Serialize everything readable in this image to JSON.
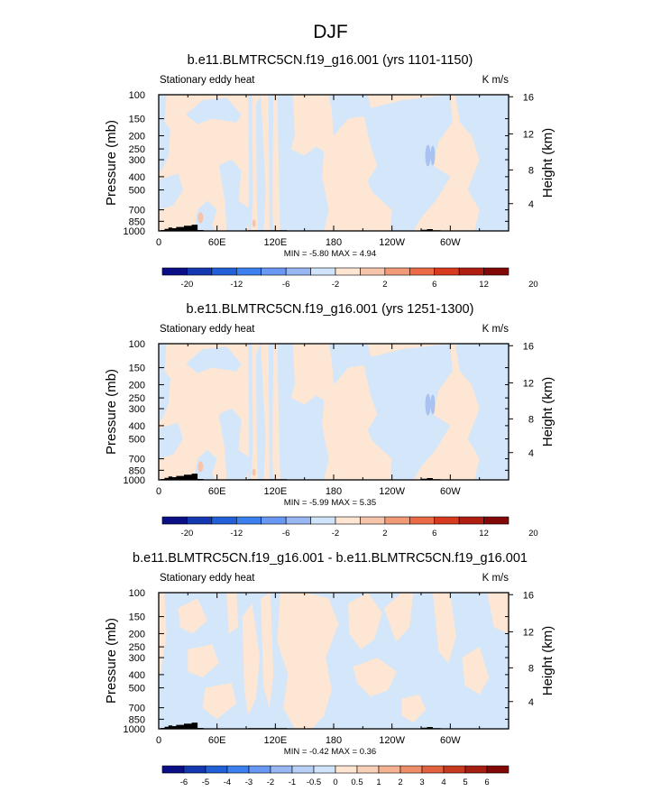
{
  "title": "DJF",
  "panels": [
    {
      "id": "p1",
      "case_title": "b.e11.BLMTRC5CN.f19_g16.001 (yrs 1101-1150)",
      "left_label": "Stationary eddy heat",
      "right_label": "K m/s",
      "min_max": "MIN =  -5.80  MAX =   4.94",
      "colorbar_labels": [
        "-20",
        "-12",
        "-6",
        "-2",
        "2",
        "6",
        "12",
        "20"
      ]
    },
    {
      "id": "p2",
      "case_title": "b.e11.BLMTRC5CN.f19_g16.001 (yrs 1251-1300)",
      "left_label": "Stationary eddy heat",
      "right_label": "K m/s",
      "min_max": "MIN =  -5.99  MAX =   5.35",
      "colorbar_labels": [
        "-20",
        "-12",
        "-6",
        "-2",
        "2",
        "6",
        "12",
        "20"
      ]
    },
    {
      "id": "p3",
      "case_title": "b.e11.BLMTRC5CN.f19_g16.001 - b.e11.BLMTRC5CN.f19_g16.001",
      "left_label": "Stationary eddy heat",
      "right_label": "K m/s",
      "min_max": "MIN =  -0.42  MAX =   0.36",
      "colorbar_labels": [
        "-6",
        "-5",
        "-4",
        "-3",
        "-2",
        "-1",
        "-0.5",
        "0",
        "0.5",
        "1",
        "2",
        "3",
        "4",
        "5",
        "6"
      ]
    }
  ],
  "axes": {
    "y_label": "Pressure (mb)",
    "y2_label": "Height (km)",
    "pressure_ticks": [
      "100",
      "150",
      "200",
      "250",
      "300",
      "400",
      "500",
      "700",
      "850",
      "1000"
    ],
    "height_ticks": [
      "16",
      "12",
      "8",
      "4"
    ],
    "lon_ticks": [
      "0",
      "60E",
      "120E",
      "180",
      "120W",
      "60W"
    ]
  },
  "colors": {
    "colorbar_14": [
      "#0a0f85",
      "#1438b0",
      "#2260d8",
      "#3b80ee",
      "#6898f2",
      "#98b6f2",
      "#cfe4fa",
      "#fde5d2",
      "#f6c4ab",
      "#f09a78",
      "#ea6b45",
      "#d83a20",
      "#b01e12",
      "#820808"
    ],
    "colorbar_16": [
      "#0a0f85",
      "#1438b0",
      "#2260d8",
      "#3b80ee",
      "#6898f2",
      "#98b6f2",
      "#b8d0f6",
      "#cfe4fa",
      "#fde5d2",
      "#f8d0b8",
      "#f3b393",
      "#ee8e68",
      "#e2613e",
      "#c83a20",
      "#a51e12",
      "#820808"
    ],
    "neg_fill": "#d3e6fa",
    "pos_fill": "#fde6d3",
    "terrain": "#000000"
  },
  "chart_data": [
    {
      "type": "heatmap",
      "title": "b.e11.BLMTRC5CN.f19_g16.001 (yrs 1101-1150)",
      "xlabel": "",
      "ylabel": "Pressure (mb)",
      "x_range": [
        0,
        360
      ],
      "y_range_mb": [
        1000,
        100
      ],
      "field": "Stationary eddy heat",
      "units": "K m/s",
      "min": -5.8,
      "max": 4.94,
      "levels": [
        -20,
        -16,
        -12,
        -9,
        -6,
        -4,
        -2,
        0,
        2,
        4,
        6,
        9,
        12,
        16,
        20
      ]
    },
    {
      "type": "heatmap",
      "title": "b.e11.BLMTRC5CN.f19_g16.001 (yrs 1251-1300)",
      "xlabel": "",
      "ylabel": "Pressure (mb)",
      "x_range": [
        0,
        360
      ],
      "y_range_mb": [
        1000,
        100
      ],
      "field": "Stationary eddy heat",
      "units": "K m/s",
      "min": -5.99,
      "max": 5.35,
      "levels": [
        -20,
        -16,
        -12,
        -9,
        -6,
        -4,
        -2,
        0,
        2,
        4,
        6,
        9,
        12,
        16,
        20
      ]
    },
    {
      "type": "heatmap",
      "title": "b.e11.BLMTRC5CN.f19_g16.001 - b.e11.BLMTRC5CN.f19_g16.001",
      "xlabel": "",
      "ylabel": "Pressure (mb)",
      "x_range": [
        0,
        360
      ],
      "y_range_mb": [
        1000,
        100
      ],
      "field": "Stationary eddy heat",
      "units": "K m/s",
      "min": -0.42,
      "max": 0.36,
      "levels": [
        -6,
        -5,
        -4,
        -3,
        -2,
        -1,
        -0.5,
        0,
        0.5,
        1,
        2,
        3,
        4,
        5,
        6
      ]
    }
  ]
}
